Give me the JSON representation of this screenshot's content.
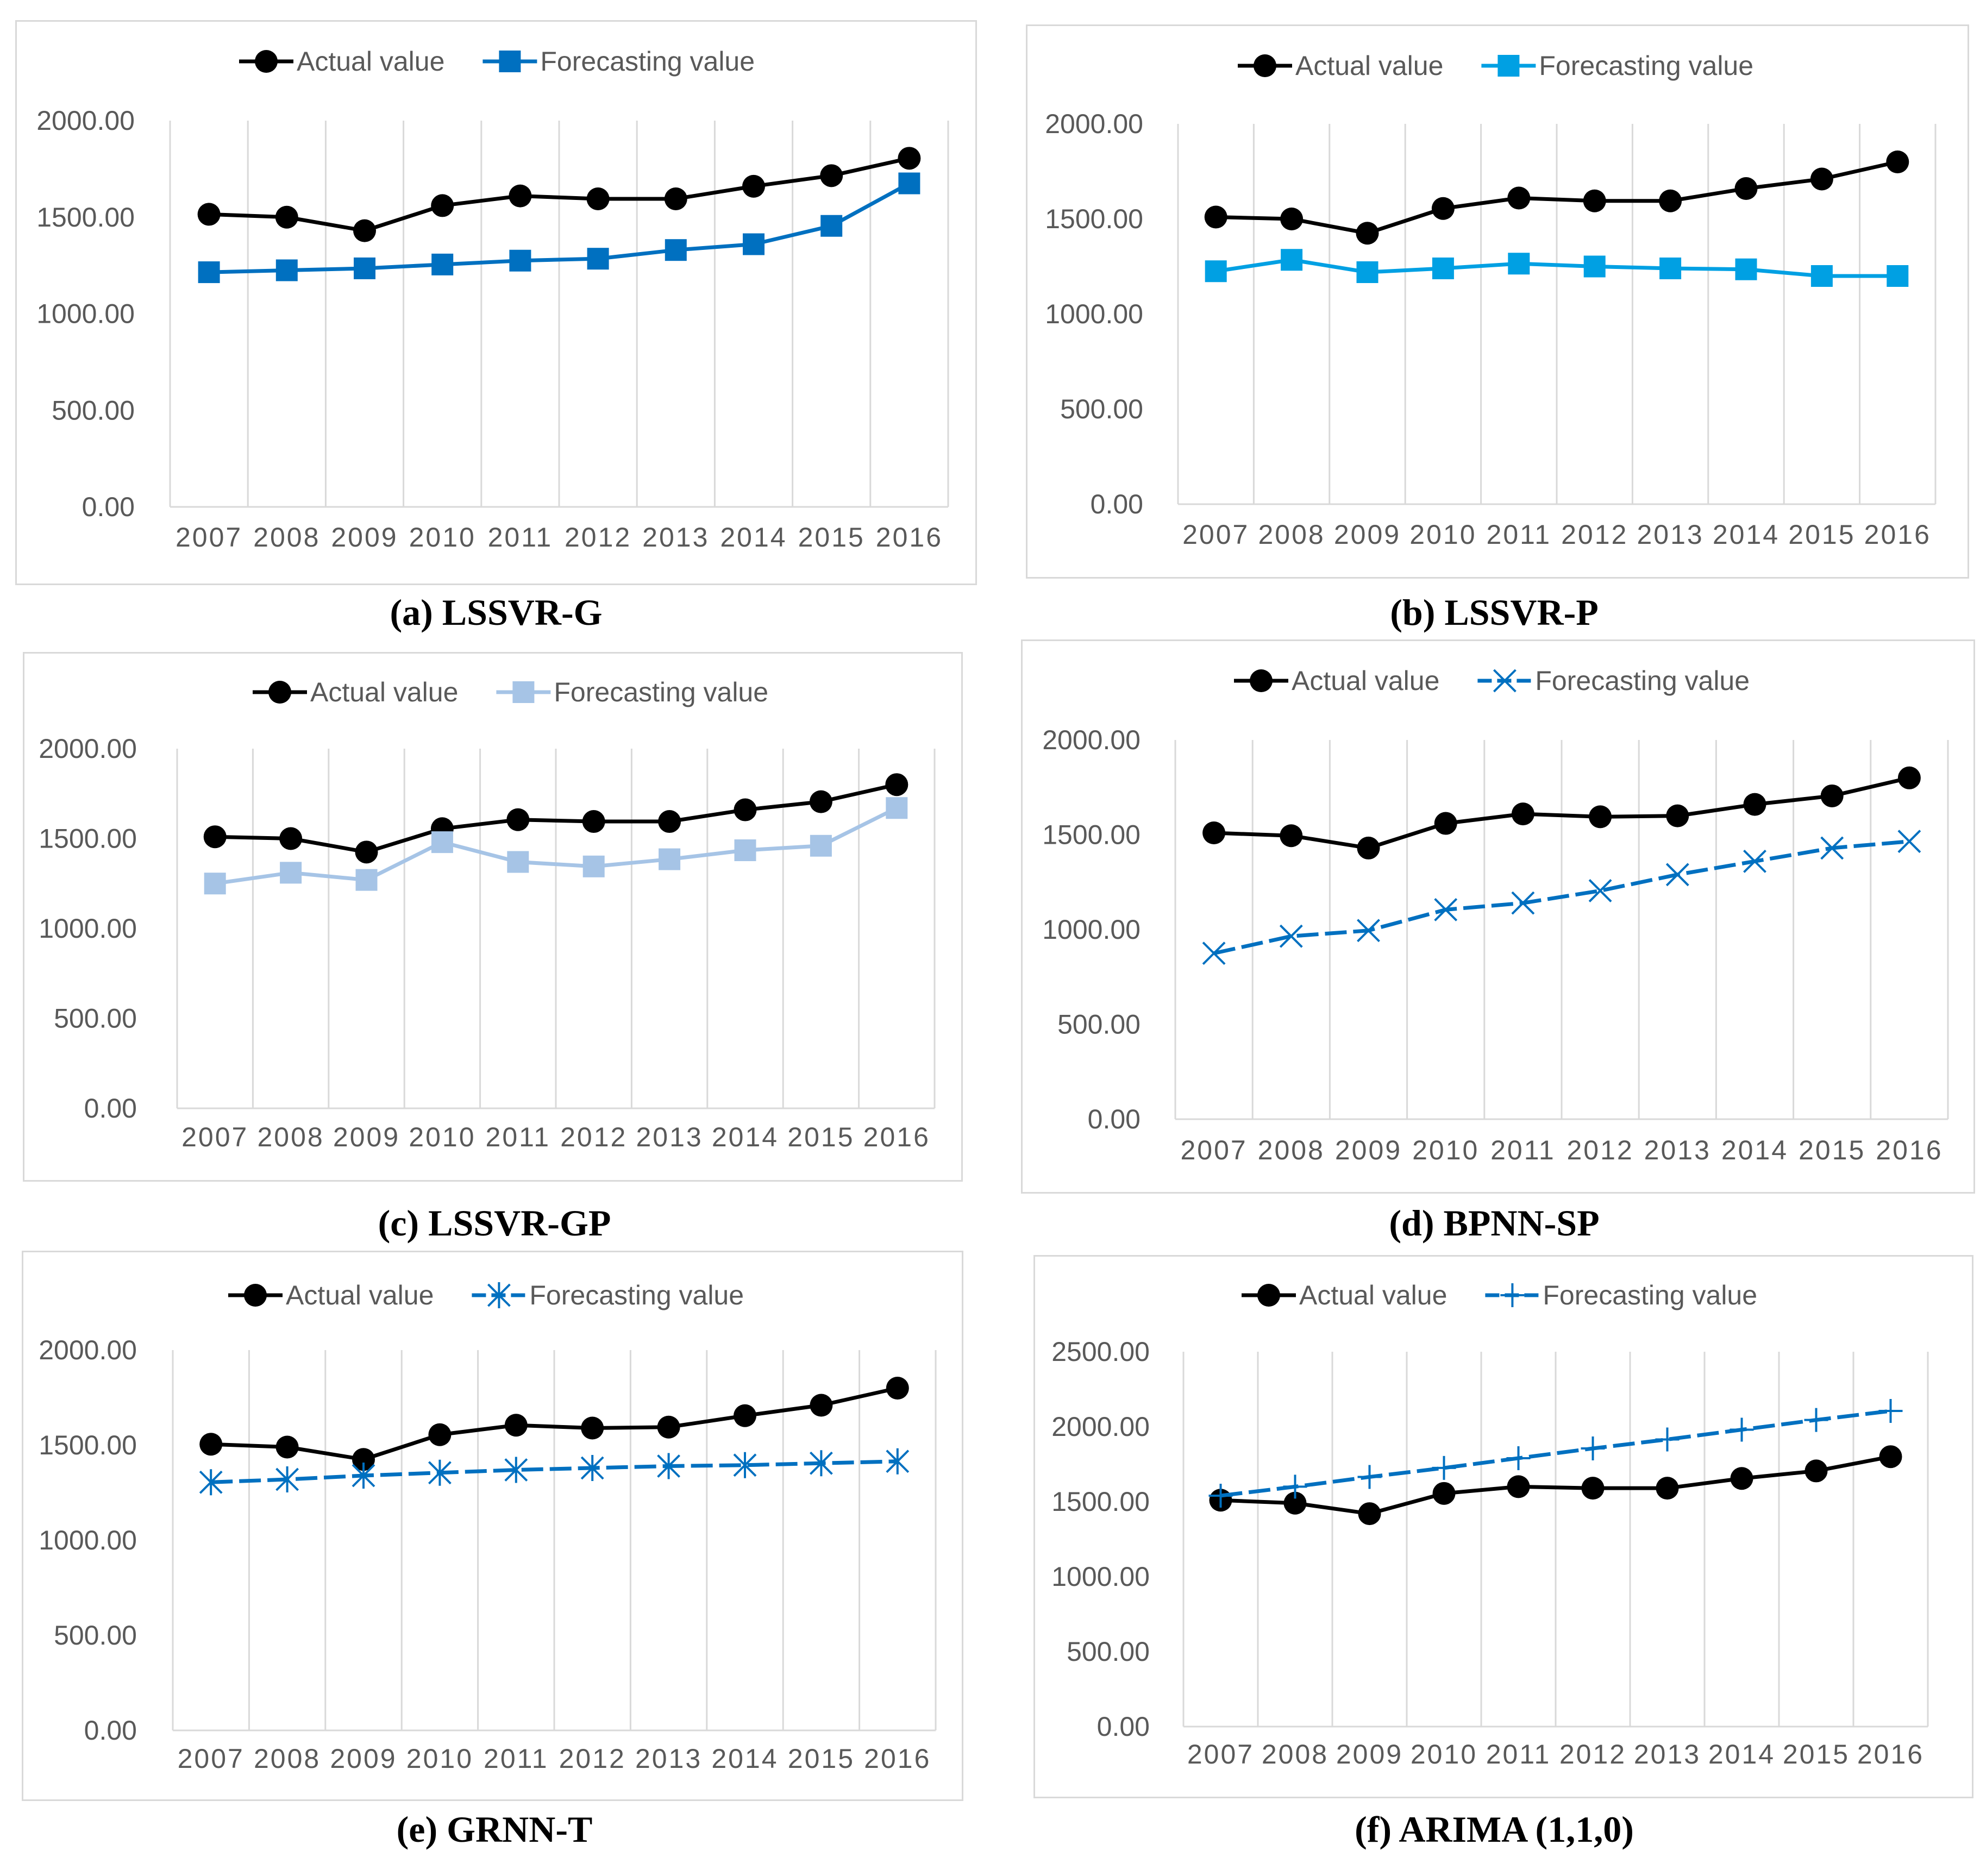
{
  "chart_data": [
    {
      "id": "a",
      "type": "line",
      "caption_letter": "(a)",
      "caption_model": "LSSVR-G",
      "categories": [
        "2007",
        "2008",
        "2009",
        "2010",
        "2011",
        "2012",
        "2013",
        "2014",
        "2015",
        "2016"
      ],
      "yticks": [
        "0.00",
        "500.00",
        "1000.00",
        "1500.00",
        "2000.00"
      ],
      "ylim": [
        0,
        2000
      ],
      "series": [
        {
          "name": "Actual value",
          "marker": "circle",
          "color": "#000000",
          "dashed": false,
          "values": [
            1515,
            1500,
            1430,
            1560,
            1610,
            1595,
            1595,
            1660,
            1715,
            1805
          ]
        },
        {
          "name": "Forecasting value",
          "marker": "square",
          "color": "#0070c0",
          "dashed": false,
          "values": [
            1215,
            1225,
            1235,
            1255,
            1275,
            1285,
            1330,
            1360,
            1455,
            1675
          ]
        }
      ]
    },
    {
      "id": "b",
      "type": "line",
      "caption_letter": "(b)",
      "caption_model": "LSSVR-P",
      "categories": [
        "2007",
        "2008",
        "2009",
        "2010",
        "2011",
        "2012",
        "2013",
        "2014",
        "2015",
        "2016"
      ],
      "yticks": [
        "0.00",
        "500.00",
        "1000.00",
        "1500.00",
        "2000.00"
      ],
      "ylim": [
        0,
        2000
      ],
      "series": [
        {
          "name": "Actual value",
          "marker": "circle",
          "color": "#000000",
          "dashed": false,
          "values": [
            1510,
            1500,
            1425,
            1555,
            1610,
            1595,
            1595,
            1660,
            1710,
            1800
          ]
        },
        {
          "name": "Forecasting value",
          "marker": "square",
          "color": "#00a0e3",
          "dashed": false,
          "values": [
            1225,
            1285,
            1220,
            1240,
            1265,
            1250,
            1240,
            1235,
            1200,
            1200
          ]
        }
      ]
    },
    {
      "id": "c",
      "type": "line",
      "caption_letter": "(c)",
      "caption_model": "LSSVR-GP",
      "categories": [
        "2007",
        "2008",
        "2009",
        "2010",
        "2011",
        "2012",
        "2013",
        "2014",
        "2015",
        "2016"
      ],
      "yticks": [
        "0.00",
        "500.00",
        "1000.00",
        "1500.00",
        "2000.00"
      ],
      "ylim": [
        0,
        2000
      ],
      "series": [
        {
          "name": "Actual value",
          "marker": "circle",
          "color": "#000000",
          "dashed": false,
          "values": [
            1510,
            1500,
            1425,
            1555,
            1605,
            1595,
            1595,
            1660,
            1705,
            1800
          ]
        },
        {
          "name": "Forecasting value",
          "marker": "square",
          "color": "#a6c4e6",
          "dashed": false,
          "values": [
            1250,
            1310,
            1270,
            1480,
            1370,
            1345,
            1385,
            1435,
            1460,
            1670
          ]
        }
      ]
    },
    {
      "id": "d",
      "type": "line",
      "caption_letter": "(d)",
      "caption_model": "BPNN-SP",
      "categories": [
        "2007",
        "2008",
        "2009",
        "2010",
        "2011",
        "2012",
        "2013",
        "2014",
        "2015",
        "2016"
      ],
      "yticks": [
        "0.00",
        "500.00",
        "1000.00",
        "1500.00",
        "2000.00"
      ],
      "ylim": [
        0,
        2000
      ],
      "series": [
        {
          "name": "Actual value",
          "marker": "circle",
          "color": "#000000",
          "dashed": false,
          "values": [
            1510,
            1495,
            1430,
            1560,
            1610,
            1595,
            1600,
            1660,
            1705,
            1800
          ]
        },
        {
          "name": "Forecasting value",
          "marker": "x",
          "color": "#0070c0",
          "dashed": true,
          "values": [
            875,
            965,
            995,
            1105,
            1140,
            1205,
            1290,
            1360,
            1430,
            1465
          ]
        }
      ]
    },
    {
      "id": "e",
      "type": "line",
      "caption_letter": "(e)",
      "caption_model": "GRNN-T",
      "categories": [
        "2007",
        "2008",
        "2009",
        "2010",
        "2011",
        "2012",
        "2013",
        "2014",
        "2015",
        "2016"
      ],
      "yticks": [
        "0.00",
        "500.00",
        "1000.00",
        "1500.00",
        "2000.00"
      ],
      "ylim": [
        0,
        2000
      ],
      "series": [
        {
          "name": "Actual value",
          "marker": "circle",
          "color": "#000000",
          "dashed": false,
          "values": [
            1505,
            1490,
            1425,
            1555,
            1605,
            1590,
            1595,
            1655,
            1710,
            1800
          ]
        },
        {
          "name": "Forecasting value",
          "marker": "star",
          "color": "#0070c0",
          "dashed": true,
          "values": [
            1305,
            1320,
            1340,
            1355,
            1370,
            1380,
            1390,
            1395,
            1405,
            1415
          ]
        }
      ]
    },
    {
      "id": "f",
      "type": "line",
      "caption_letter": "(f)",
      "caption_model": "ARIMA (1,1,0)",
      "categories": [
        "2007",
        "2008",
        "2009",
        "2010",
        "2011",
        "2012",
        "2013",
        "2014",
        "2015",
        "2016"
      ],
      "yticks": [
        "0.00",
        "500.00",
        "1000.00",
        "1500.00",
        "2000.00",
        "2500.00"
      ],
      "ylim": [
        0,
        2500
      ],
      "series": [
        {
          "name": "Actual value",
          "marker": "circle",
          "color": "#000000",
          "dashed": false,
          "values": [
            1510,
            1490,
            1420,
            1555,
            1600,
            1590,
            1590,
            1655,
            1705,
            1800
          ]
        },
        {
          "name": "Forecasting value",
          "marker": "plus",
          "color": "#0070c0",
          "dashed": true,
          "values": [
            1540,
            1600,
            1665,
            1725,
            1790,
            1855,
            1915,
            1980,
            2045,
            2105
          ]
        }
      ]
    }
  ]
}
